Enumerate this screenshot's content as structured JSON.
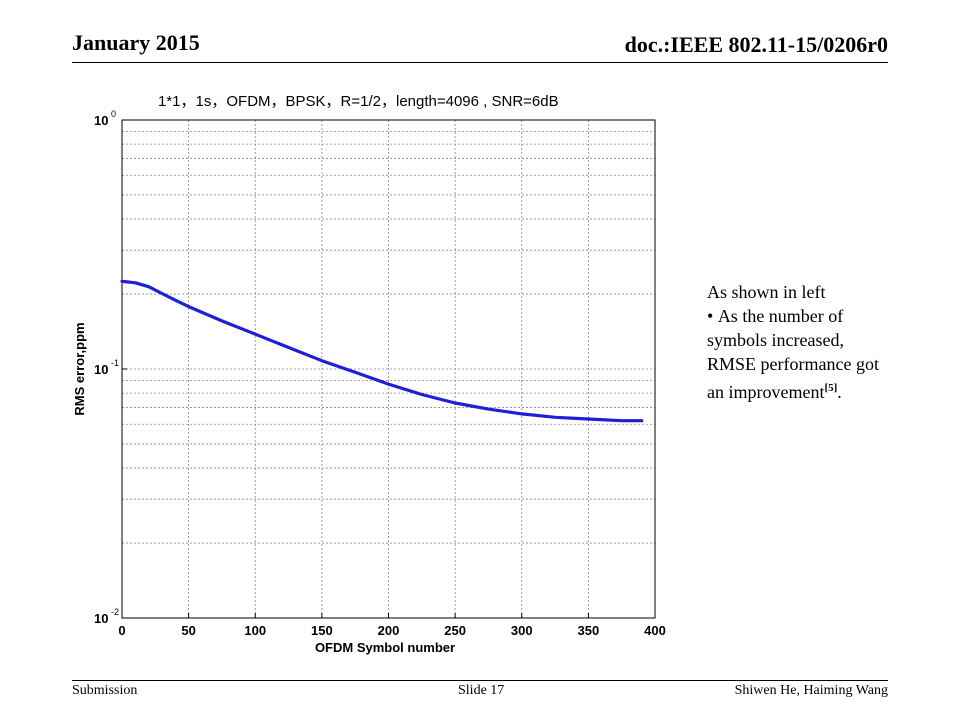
{
  "header": {
    "date": "January 2015",
    "doc": "doc.:IEEE 802.11-15/0206r0"
  },
  "footer": {
    "left": "Submission",
    "middle": "Slide 17",
    "right": "Shiwen He, Haiming Wang"
  },
  "note": {
    "intro": "As shown in left",
    "bullet": "As  the number of symbols increased, RMSE performance got an improvement",
    "ref": "[5]",
    "end": "."
  },
  "chart_data": {
    "type": "line",
    "title": "1*1，1s，OFDM，BPSK，R=1/2，length=4096 , SNR=6dB",
    "xlabel": "OFDM Symbol number",
    "ylabel": "RMS error,ppm",
    "xlim": [
      0,
      400
    ],
    "ylim": [
      0.01,
      1
    ],
    "yscale": "log",
    "grid": true,
    "x_ticks": [
      "0",
      "50",
      "100",
      "150",
      "200",
      "250",
      "300",
      "350",
      "400"
    ],
    "y_ticks": [
      {
        "base": "10",
        "exp": "0"
      },
      {
        "base": "10",
        "exp": "-1"
      },
      {
        "base": "10",
        "exp": "-2"
      }
    ],
    "line_color": "#1f1fd6",
    "series": [
      {
        "x": [
          0,
          10,
          20,
          30,
          40,
          50,
          75,
          100,
          125,
          150,
          175,
          200,
          225,
          250,
          275,
          300,
          325,
          350,
          375,
          390
        ],
        "y": [
          0.225,
          0.222,
          0.214,
          0.201,
          0.189,
          0.178,
          0.156,
          0.138,
          0.122,
          0.108,
          0.097,
          0.087,
          0.079,
          0.073,
          0.069,
          0.066,
          0.064,
          0.063,
          0.062,
          0.062
        ]
      }
    ]
  }
}
